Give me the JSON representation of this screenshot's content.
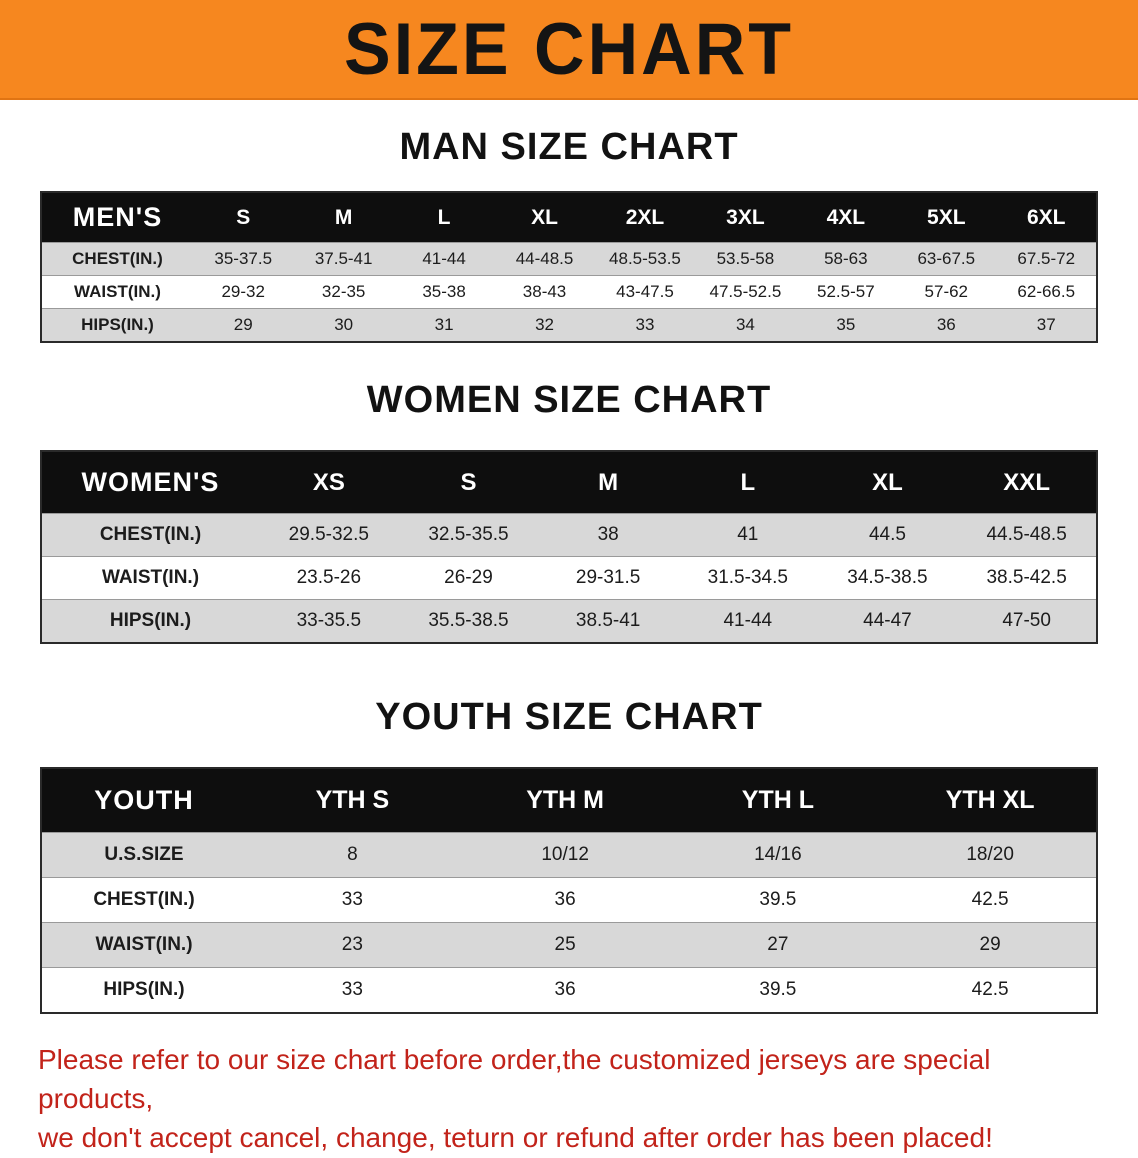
{
  "banner": {
    "title": "SIZE CHART",
    "bg_color": "#F6871F",
    "text_color": "#141414"
  },
  "sections": [
    {
      "id": "men",
      "title": "MAN SIZE CHART",
      "table": {
        "header": [
          "MEN'S",
          "S",
          "M",
          "L",
          "XL",
          "2XL",
          "3XL",
          "4XL",
          "5XL",
          "6XL"
        ],
        "rows": [
          [
            "CHEST(IN.)",
            "35-37.5",
            "37.5-41",
            "41-44",
            "44-48.5",
            "48.5-53.5",
            "53.5-58",
            "58-63",
            "63-67.5",
            "67.5-72"
          ],
          [
            "WAIST(IN.)",
            "29-32",
            "32-35",
            "35-38",
            "38-43",
            "43-47.5",
            "47.5-52.5",
            "52.5-57",
            "57-62",
            "62-66.5"
          ],
          [
            "HIPS(IN.)",
            "29",
            "30",
            "31",
            "32",
            "33",
            "34",
            "35",
            "36",
            "37"
          ]
        ]
      }
    },
    {
      "id": "women",
      "title": "WOMEN SIZE CHART",
      "table": {
        "header": [
          "WOMEN'S",
          "XS",
          "S",
          "M",
          "L",
          "XL",
          "XXL"
        ],
        "rows": [
          [
            "CHEST(IN.)",
            "29.5-32.5",
            "32.5-35.5",
            "38",
            "41",
            "44.5",
            "44.5-48.5"
          ],
          [
            "WAIST(IN.)",
            "23.5-26",
            "26-29",
            "29-31.5",
            "31.5-34.5",
            "34.5-38.5",
            "38.5-42.5"
          ],
          [
            "HIPS(IN.)",
            "33-35.5",
            "35.5-38.5",
            "38.5-41",
            "41-44",
            "44-47",
            "47-50"
          ]
        ]
      }
    },
    {
      "id": "youth",
      "title": "YOUTH SIZE CHART",
      "table": {
        "header": [
          "YOUTH",
          "YTH S",
          "YTH M",
          "YTH L",
          "YTH XL"
        ],
        "rows": [
          [
            "U.S.SIZE",
            "8",
            "10/12",
            "14/16",
            "18/20"
          ],
          [
            "CHEST(IN.)",
            "33",
            "36",
            "39.5",
            "42.5"
          ],
          [
            "WAIST(IN.)",
            "23",
            "25",
            "27",
            "29"
          ],
          [
            "HIPS(IN.)",
            "33",
            "36",
            "39.5",
            "42.5"
          ]
        ]
      }
    }
  ],
  "footer": {
    "line1": "Please refer to our size chart before order,the customized jerseys are special products,",
    "line2": "we don't accept cancel, change, teturn or refund after order has been placed!",
    "text_color": "#c2231a"
  }
}
